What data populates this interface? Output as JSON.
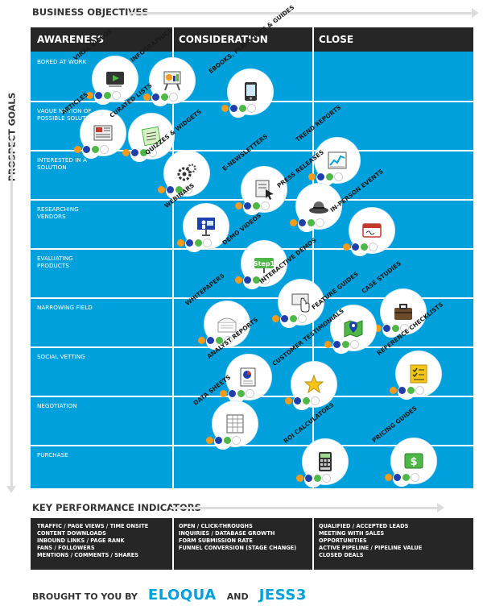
{
  "header": {
    "business_objectives": "BUSINESS OBJECTIVES",
    "prospect_goals": "PROSPECT GOALS"
  },
  "columns": [
    "AWARENESS",
    "CONSIDERATION",
    "CLOSE"
  ],
  "rows": [
    "BORED AT WORK",
    "VAGUE NOTION OF POSSIBLE SOLUTION",
    "INTERESTED IN A SOLUTION",
    "RESEARCHING VENDORS",
    "EVALUATING PRODUCTS",
    "NARROWING FIELD",
    "SOCIAL VETTING",
    "NEGOTIATION",
    "PURCHASE"
  ],
  "items": {
    "viral_videos": "VIRAL VIDEOS",
    "infographics": "INFOGRAPHICS",
    "ebooks": "EBOOKS, PLAYBOOKS & GUIDES",
    "articles": "ARTICLES",
    "curated_lists": "CURATED LISTS",
    "quizzes": "QUIZZES & WIDGETS",
    "trend_reports": "TREND REPORTS",
    "enewsletters": "E-NEWSLETTERS",
    "press_releases": "PRESS RELEASES",
    "webinars": "WEBINARS",
    "in_person": "IN-PERSON EVENTS",
    "demo_videos": "DEMO VIDEOS",
    "interactive_demos": "INTERACTIVE DEMOS",
    "whitepapers": "WHITEPAPERS",
    "feature_guides": "FEATURE GUIDES",
    "case_studies": "CASE STUDIES",
    "analyst_reports": "ANALYST REPORTS",
    "customer_testimonials": "CUSTOMER TESTIMONIALS",
    "reference_checklists": "REFERENCE CHECKLISTS",
    "data_sheets": "DATA SHEETS",
    "roi_calculators": "ROI CALCULATORS",
    "pricing_guides": "PRICING GUIDES"
  },
  "kpi": {
    "title": "KEY PERFORMANCE INDICATORS",
    "col1": [
      "TRAFFIC / PAGE VIEWS / TIME ONSITE",
      "CONTENT DOWNLOADS",
      "INBOUND LINKS / PAGE RANK",
      "FANS / FOLLOWERS",
      "MENTIONS / COMMENTS / SHARES"
    ],
    "col2": [
      "OPEN / CLICK-THROUGHS",
      "INQUIRIES / DATABASE GROWTH",
      "FORM SUBMISSION RATE",
      "FUNNEL CONVERSION (STAGE CHANGE)"
    ],
    "col3": [
      "QUALIFIED / ACCEPTED LEADS",
      "MEETING WITH SALES",
      "OPPORTUNITIES",
      "ACTIVE PIPELINE / PIPELINE VALUE",
      "CLOSED DEALS"
    ]
  },
  "footer": {
    "brought_by": "BROUGHT TO YOU BY",
    "brand1": "ELOQUA",
    "and": "AND",
    "brand2": "JESS3"
  },
  "colors": {
    "grid_blue": "#00a0dc",
    "header_dark": "#262626",
    "dot_orange": "#f59a1b",
    "dot_navy": "#1f3fae",
    "dot_green": "#4db848"
  }
}
